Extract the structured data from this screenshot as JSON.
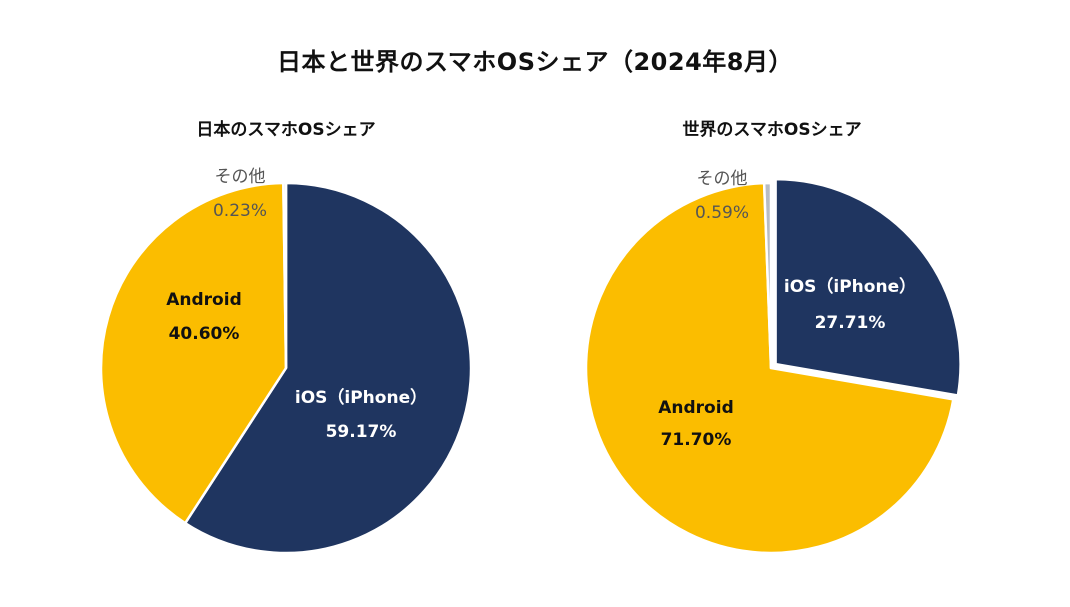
{
  "title": "日本と世界のスマホOSシェア（2024年8月）",
  "colors": {
    "ios": "#1f3560",
    "android": "#fbbd00",
    "other": "#b7bcc4",
    "other_label": "#555555",
    "dark_label": "#111111",
    "light_label": "#ffffff"
  },
  "chart_data": [
    {
      "type": "pie",
      "title": "日本のスマホOSシェア",
      "slices": [
        {
          "label": "iOS（iPhone）",
          "value": 59.17,
          "display": "59.17%"
        },
        {
          "label": "Android",
          "value": 40.6,
          "display": "40.60%"
        },
        {
          "label": "その他",
          "value": 0.23,
          "display": "0.23%"
        }
      ]
    },
    {
      "type": "pie",
      "title": "世界のスマホOSシェア",
      "slices": [
        {
          "label": "iOS（iPhone）",
          "value": 27.71,
          "display": "27.71%"
        },
        {
          "label": "Android",
          "value": 71.7,
          "display": "71.70%"
        },
        {
          "label": "その他",
          "value": 0.59,
          "display": "0.59%"
        }
      ]
    }
  ]
}
